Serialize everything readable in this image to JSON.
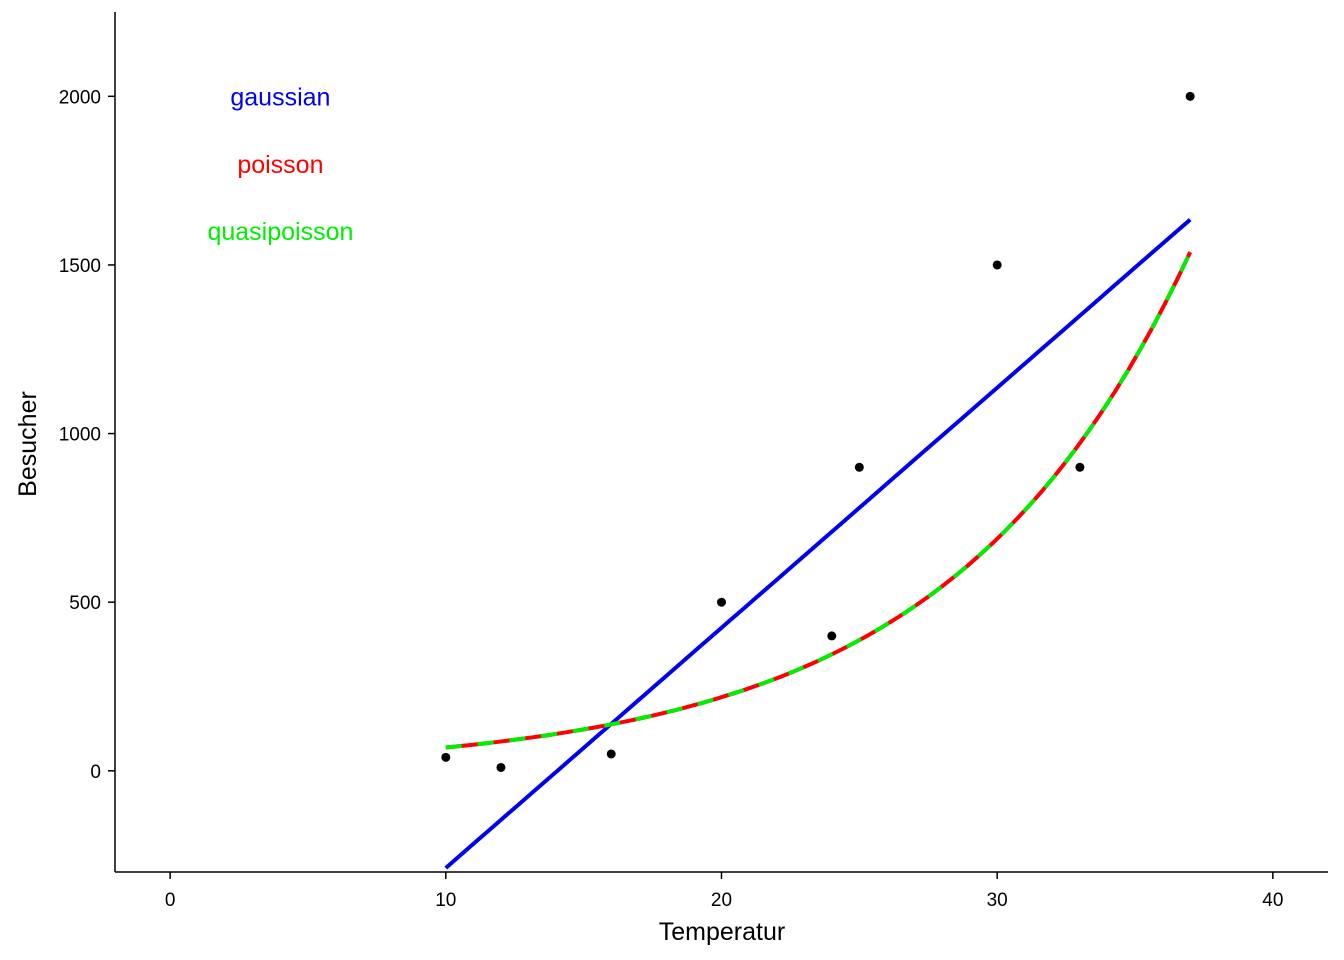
{
  "chart_data": {
    "type": "scatter",
    "title": "",
    "xlabel": "Temperatur",
    "ylabel": "Besucher",
    "xlim": [
      -2,
      42
    ],
    "ylim": [
      -300,
      2250
    ],
    "x_ticks": [
      0,
      10,
      20,
      30,
      40
    ],
    "x_tick_labels": [
      "0",
      "10",
      "20",
      "30",
      "40"
    ],
    "y_ticks": [
      0,
      500,
      1000,
      1500,
      2000
    ],
    "y_tick_labels": [
      "0",
      "500",
      "1000",
      "1500",
      "2000"
    ],
    "grid": false,
    "points": {
      "x": [
        10,
        12,
        16,
        20,
        24,
        25,
        30,
        33,
        37
      ],
      "y": [
        40,
        10,
        50,
        500,
        400,
        900,
        1500,
        900,
        2000
      ],
      "color": "#000000"
    },
    "series": [
      {
        "name": "gaussian",
        "kind": "linear",
        "x_range": [
          10,
          37
        ],
        "intercept": -1000,
        "slope": 71.2,
        "color": "#0000ee",
        "dash": "solid"
      },
      {
        "name": "poisson",
        "kind": "exp",
        "x_range": [
          10,
          37
        ],
        "a": 3.087,
        "b": 0.1149,
        "color": "#ff0000",
        "dash": "solid"
      },
      {
        "name": "quasipoisson",
        "kind": "exp",
        "x_range": [
          10,
          37
        ],
        "a": 3.087,
        "b": 0.1149,
        "color": "#00ee00",
        "dash": "dashed"
      }
    ],
    "annotations": [
      {
        "text": "gaussian",
        "x": 4,
        "y": 2000,
        "color": "#0000ee"
      },
      {
        "text": "poisson",
        "x": 4,
        "y": 1800,
        "color": "#ff0000"
      },
      {
        "text": "quasipoisson",
        "x": 4,
        "y": 1600,
        "color": "#00ee00"
      }
    ]
  }
}
